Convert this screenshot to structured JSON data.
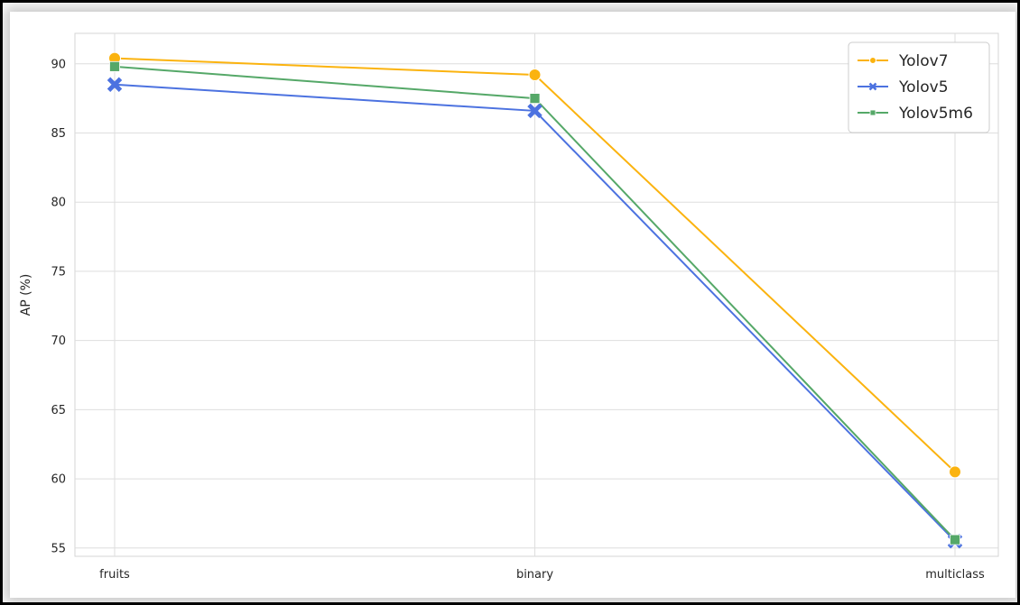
{
  "chart_data": {
    "type": "line",
    "categories": [
      "fruits",
      "binary",
      "multiclass"
    ],
    "ylabel": "AP (%)",
    "xlabel": "",
    "title": "",
    "ylim": [
      54.4,
      92.2
    ],
    "yticks": [
      55,
      60,
      65,
      70,
      75,
      80,
      85,
      90
    ],
    "grid": true,
    "legend_position": "top-right",
    "series": [
      {
        "name": "Yolov7",
        "values": [
          90.4,
          89.2,
          60.5
        ],
        "color": "#fbb30f",
        "marker": "circle"
      },
      {
        "name": "Yolov5",
        "values": [
          88.5,
          86.6,
          55.5
        ],
        "color": "#4c72e0",
        "marker": "x"
      },
      {
        "name": "Yolov5m6",
        "values": [
          89.8,
          87.5,
          55.6
        ],
        "color": "#55a868",
        "marker": "square"
      }
    ]
  }
}
